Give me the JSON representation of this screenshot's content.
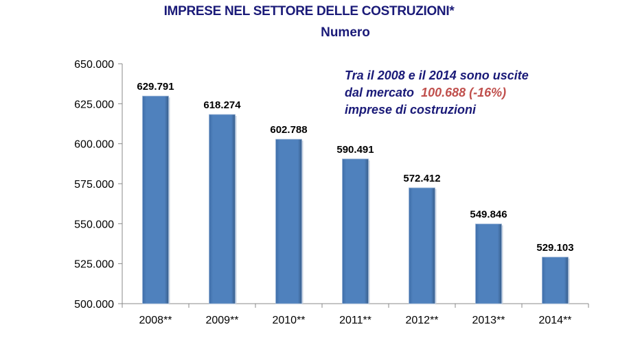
{
  "chart_data": {
    "type": "bar",
    "title": "IMPRESE NEL SETTORE DELLE COSTRUZIONI*",
    "subtitle": "Numero",
    "categories": [
      "2008**",
      "2009**",
      "2010**",
      "2011**",
      "2012**",
      "2013**",
      "2014**"
    ],
    "values": [
      629791,
      618274,
      602788,
      590491,
      572412,
      549846,
      529103
    ],
    "value_labels": [
      "629.791",
      "618.274",
      "602.788",
      "590.491",
      "572.412",
      "549.846",
      "529.103"
    ],
    "ylim": [
      500000,
      650000
    ],
    "yticks": [
      500000,
      525000,
      550000,
      575000,
      600000,
      625000,
      650000
    ],
    "ytick_labels": [
      "500.000",
      "525.000",
      "550.000",
      "575.000",
      "600.000",
      "625.000",
      "650.000"
    ],
    "grid": false,
    "bar_color": "#4f81bd",
    "annotation": {
      "line1": "Tra il 2008 e il 2014 sono uscite",
      "line2_prefix": "dal mercato",
      "line2_highlight": "100.688 (-16%)",
      "line3": "imprese  di costruzioni",
      "highlight_color": "#c0504d"
    }
  }
}
